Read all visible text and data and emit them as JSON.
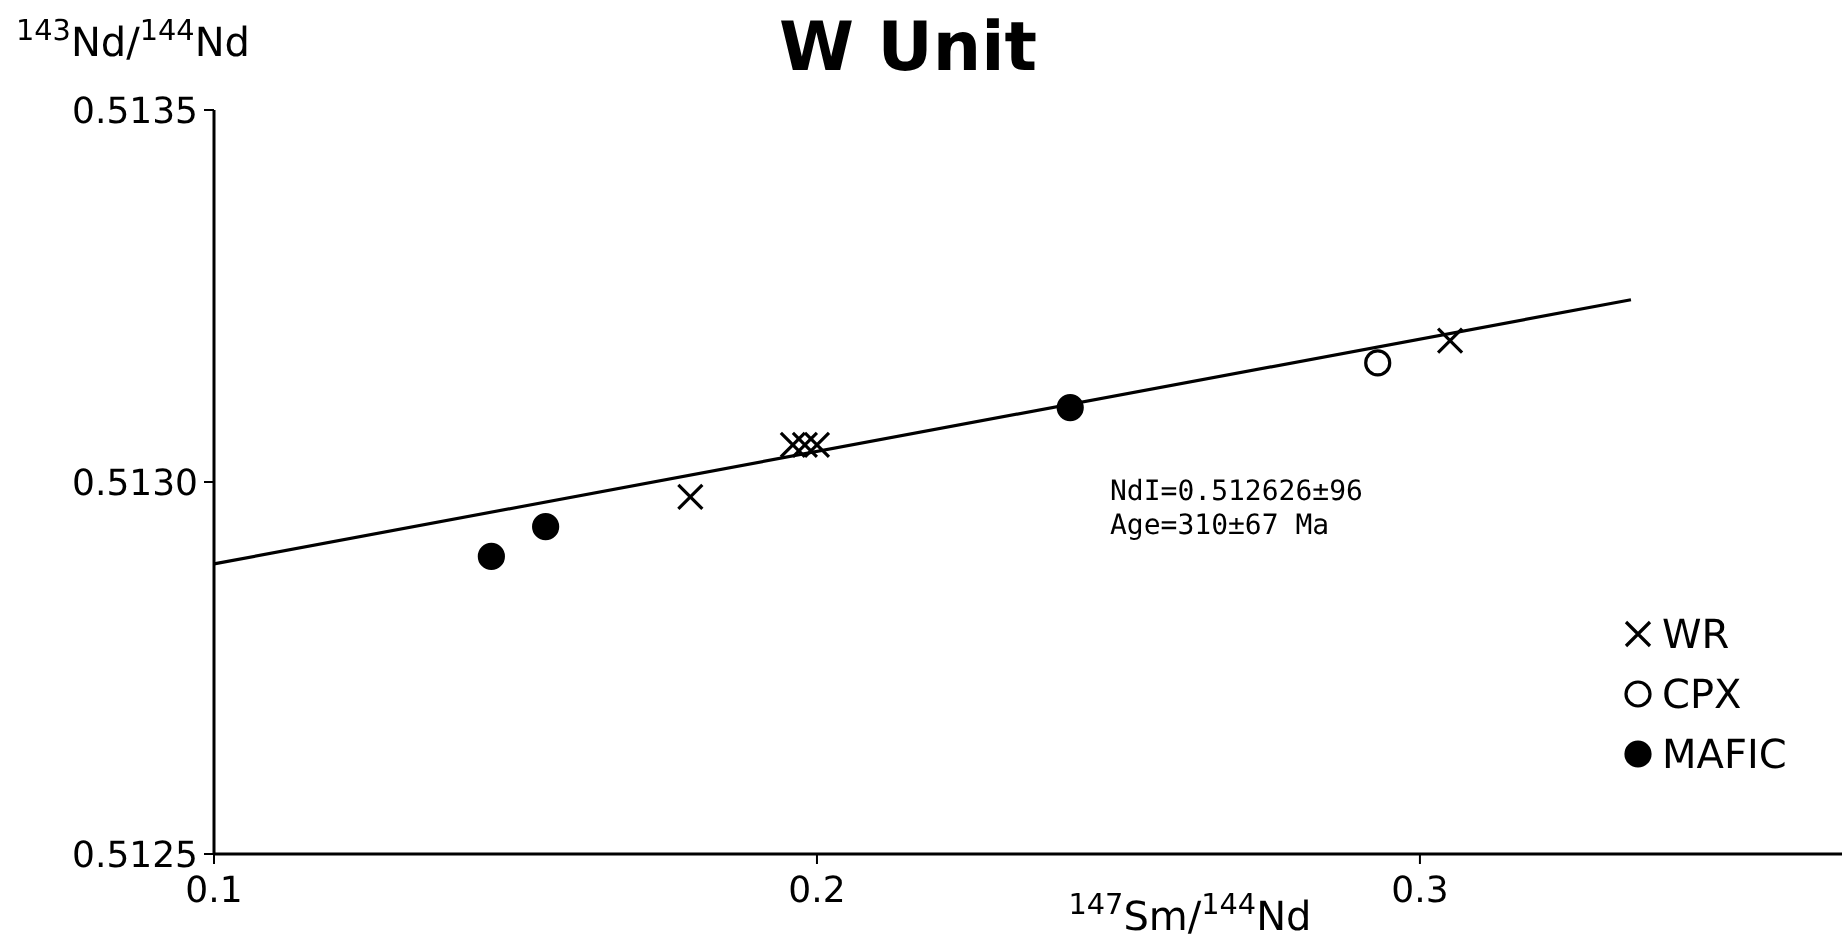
{
  "chart_data": {
    "type": "scatter",
    "title": "W Unit",
    "xlabel": "$^{147}$Sm/$^{144}$Nd",
    "ylabel": "$^{143}$Nd/$^{144}$Nd",
    "xlim": [
      0.1,
      0.37
    ],
    "ylim": [
      0.5125,
      0.5135
    ],
    "xticks": [
      0.1,
      0.2,
      0.3
    ],
    "yticks": [
      0.5125,
      {
        "value": 0.513,
        "label": "0.5130"
      },
      0.5135
    ],
    "series": [
      {
        "type": "line",
        "color": "#000000",
        "marker": "none",
        "line_style": "solid",
        "x": [
          0.1,
          0.335
        ],
        "values": [
          0.51289,
          0.513245
        ]
      },
      {
        "name": "WR",
        "marker": "cross",
        "color": "#000000",
        "x": [
          0.179,
          0.196,
          0.198,
          0.2,
          0.305
        ],
        "values": [
          0.51298,
          0.51305,
          0.51305,
          0.51305,
          0.51319
        ]
      },
      {
        "name": "CPX",
        "marker": "circle",
        "color": "#ffffff",
        "x": [
          0.293
        ],
        "values": [
          0.51316
        ]
      },
      {
        "name": "MAFIC",
        "marker": "circle",
        "color": "#000000",
        "x": [
          0.146,
          0.155,
          0.242
        ],
        "values": [
          0.5129,
          0.51294,
          0.5131
        ]
      }
    ],
    "annotations": [
      "NdI=0.512626±96",
      "Age=310±67 Ma"
    ],
    "legend": "bottom right",
    "grid": false
  }
}
